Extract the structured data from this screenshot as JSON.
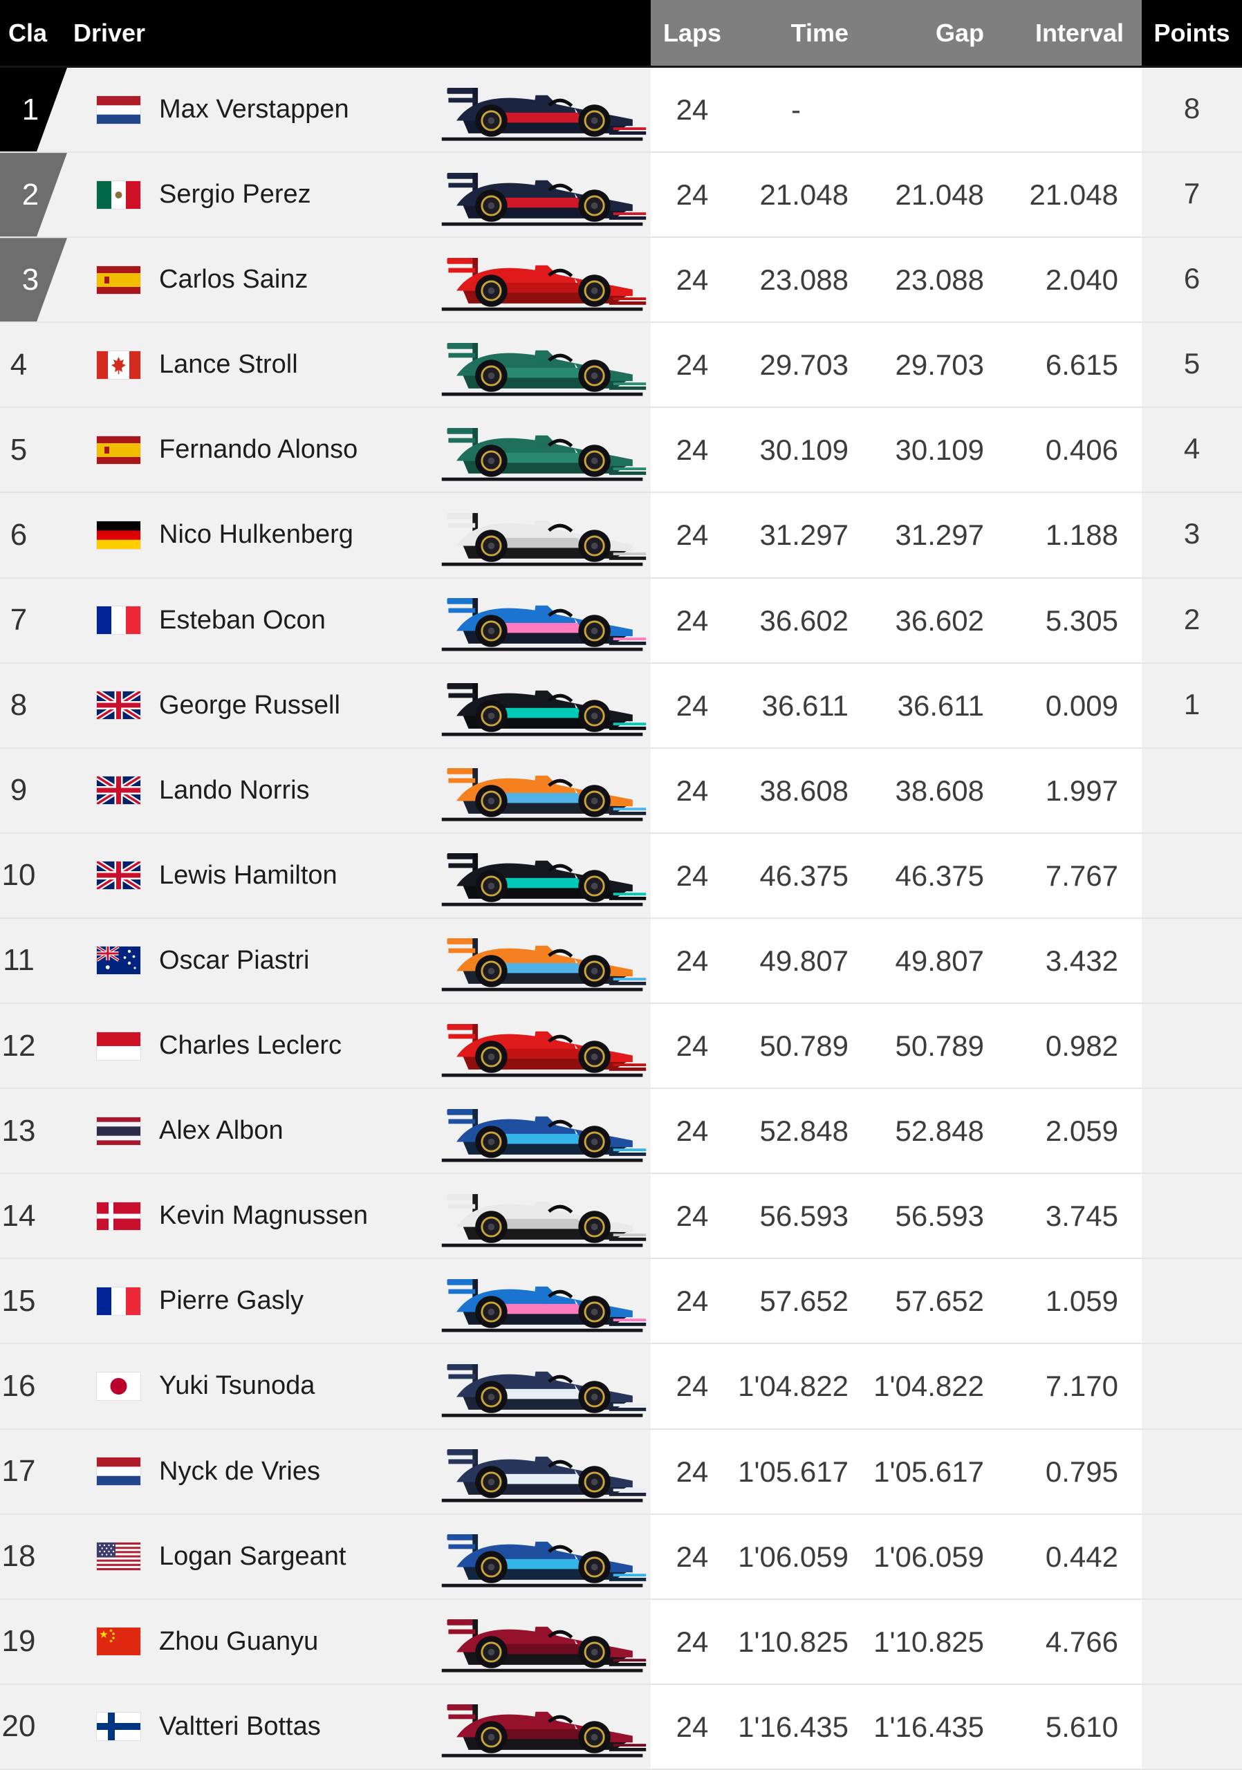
{
  "header": {
    "cla": "Cla",
    "driver": "Driver",
    "laps": "Laps",
    "time": "Time",
    "gap": "Gap",
    "interval": "Interval",
    "points": "Points"
  },
  "colors": {
    "header_black": "#000000",
    "header_gray": "#7f7f7f",
    "row_bg": "#f1f1f2",
    "data_bg": "#ffffff",
    "row_border": "#e5e5e7",
    "marker_first_bg": "#000000",
    "marker_podium_bg": "#6e6e6e",
    "marker_text": "#ffffff",
    "position_text": "#333333",
    "name_text": "#1c1c1e",
    "value_text": "#3c3c3c"
  },
  "teams": {
    "red_bull": {
      "body": "#1c2540",
      "floor": "#131a30",
      "accent": "#d01828"
    },
    "ferrari": {
      "body": "#e01a1a",
      "floor": "#8f0f0f",
      "accent": "#c01414"
    },
    "aston_martin": {
      "body": "#1e6f5c",
      "floor": "#14503f",
      "accent": "#2a8a70"
    },
    "haas": {
      "body": "#e9e9e9",
      "floor": "#1a1a1a",
      "accent": "#c9c9c9"
    },
    "alpine": {
      "body": "#1a74d0",
      "floor": "#121c2c",
      "accent": "#ff7bc0"
    },
    "mercedes": {
      "body": "#15181f",
      "floor": "#0b0d11",
      "accent": "#00c9b7"
    },
    "mclaren": {
      "body": "#f58020",
      "floor": "#1b2330",
      "accent": "#4fb3e8"
    },
    "williams": {
      "body": "#1f4fa0",
      "floor": "#12263f",
      "accent": "#35b4e8"
    },
    "alphatauri": {
      "body": "#28365c",
      "floor": "#1b2438",
      "accent": "#e8eef5"
    },
    "alfa_romeo": {
      "body": "#96112b",
      "floor": "#16161a",
      "accent": "#6e0c1f"
    }
  },
  "rows": [
    {
      "pos": "1",
      "flag": "netherlands",
      "driver": "Max Verstappen",
      "team": "red_bull",
      "laps": "24",
      "time": "-",
      "gap": "",
      "interval": "",
      "points": "8",
      "marker": "first"
    },
    {
      "pos": "2",
      "flag": "mexico",
      "driver": "Sergio Perez",
      "team": "red_bull",
      "laps": "24",
      "time": "21.048",
      "gap": "21.048",
      "interval": "21.048",
      "points": "7",
      "marker": "podium"
    },
    {
      "pos": "3",
      "flag": "spain",
      "driver": "Carlos Sainz",
      "team": "ferrari",
      "laps": "24",
      "time": "23.088",
      "gap": "23.088",
      "interval": "2.040",
      "points": "6",
      "marker": "podium"
    },
    {
      "pos": "4",
      "flag": "canada",
      "driver": "Lance Stroll",
      "team": "aston_martin",
      "laps": "24",
      "time": "29.703",
      "gap": "29.703",
      "interval": "6.615",
      "points": "5",
      "marker": "none"
    },
    {
      "pos": "5",
      "flag": "spain",
      "driver": "Fernando Alonso",
      "team": "aston_martin",
      "laps": "24",
      "time": "30.109",
      "gap": "30.109",
      "interval": "0.406",
      "points": "4",
      "marker": "none"
    },
    {
      "pos": "6",
      "flag": "germany",
      "driver": "Nico Hulkenberg",
      "team": "haas",
      "laps": "24",
      "time": "31.297",
      "gap": "31.297",
      "interval": "1.188",
      "points": "3",
      "marker": "none"
    },
    {
      "pos": "7",
      "flag": "france",
      "driver": "Esteban Ocon",
      "team": "alpine",
      "laps": "24",
      "time": "36.602",
      "gap": "36.602",
      "interval": "5.305",
      "points": "2",
      "marker": "none"
    },
    {
      "pos": "8",
      "flag": "uk",
      "driver": "George Russell",
      "team": "mercedes",
      "laps": "24",
      "time": "36.611",
      "gap": "36.611",
      "interval": "0.009",
      "points": "1",
      "marker": "none"
    },
    {
      "pos": "9",
      "flag": "uk",
      "driver": "Lando Norris",
      "team": "mclaren",
      "laps": "24",
      "time": "38.608",
      "gap": "38.608",
      "interval": "1.997",
      "points": "",
      "marker": "none"
    },
    {
      "pos": "10",
      "flag": "uk",
      "driver": "Lewis Hamilton",
      "team": "mercedes",
      "laps": "24",
      "time": "46.375",
      "gap": "46.375",
      "interval": "7.767",
      "points": "",
      "marker": "none"
    },
    {
      "pos": "11",
      "flag": "australia",
      "driver": "Oscar Piastri",
      "team": "mclaren",
      "laps": "24",
      "time": "49.807",
      "gap": "49.807",
      "interval": "3.432",
      "points": "",
      "marker": "none"
    },
    {
      "pos": "12",
      "flag": "monaco",
      "driver": "Charles Leclerc",
      "team": "ferrari",
      "laps": "24",
      "time": "50.789",
      "gap": "50.789",
      "interval": "0.982",
      "points": "",
      "marker": "none"
    },
    {
      "pos": "13",
      "flag": "thailand",
      "driver": "Alex Albon",
      "team": "williams",
      "laps": "24",
      "time": "52.848",
      "gap": "52.848",
      "interval": "2.059",
      "points": "",
      "marker": "none"
    },
    {
      "pos": "14",
      "flag": "denmark",
      "driver": "Kevin Magnussen",
      "team": "haas",
      "laps": "24",
      "time": "56.593",
      "gap": "56.593",
      "interval": "3.745",
      "points": "",
      "marker": "none"
    },
    {
      "pos": "15",
      "flag": "france",
      "driver": "Pierre Gasly",
      "team": "alpine",
      "laps": "24",
      "time": "57.652",
      "gap": "57.652",
      "interval": "1.059",
      "points": "",
      "marker": "none"
    },
    {
      "pos": "16",
      "flag": "japan",
      "driver": "Yuki Tsunoda",
      "team": "alphatauri",
      "laps": "24",
      "time": "1'04.822",
      "gap": "1'04.822",
      "interval": "7.170",
      "points": "",
      "marker": "none"
    },
    {
      "pos": "17",
      "flag": "netherlands",
      "driver": "Nyck de Vries",
      "team": "alphatauri",
      "laps": "24",
      "time": "1'05.617",
      "gap": "1'05.617",
      "interval": "0.795",
      "points": "",
      "marker": "none"
    },
    {
      "pos": "18",
      "flag": "usa",
      "driver": "Logan Sargeant",
      "team": "williams",
      "laps": "24",
      "time": "1'06.059",
      "gap": "1'06.059",
      "interval": "0.442",
      "points": "",
      "marker": "none"
    },
    {
      "pos": "19",
      "flag": "china",
      "driver": "Zhou Guanyu",
      "team": "alfa_romeo",
      "laps": "24",
      "time": "1'10.825",
      "gap": "1'10.825",
      "interval": "4.766",
      "points": "",
      "marker": "none"
    },
    {
      "pos": "20",
      "flag": "finland",
      "driver": "Valtteri Bottas",
      "team": "alfa_romeo",
      "laps": "24",
      "time": "1'16.435",
      "gap": "1'16.435",
      "interval": "5.610",
      "points": "",
      "marker": "none"
    }
  ]
}
